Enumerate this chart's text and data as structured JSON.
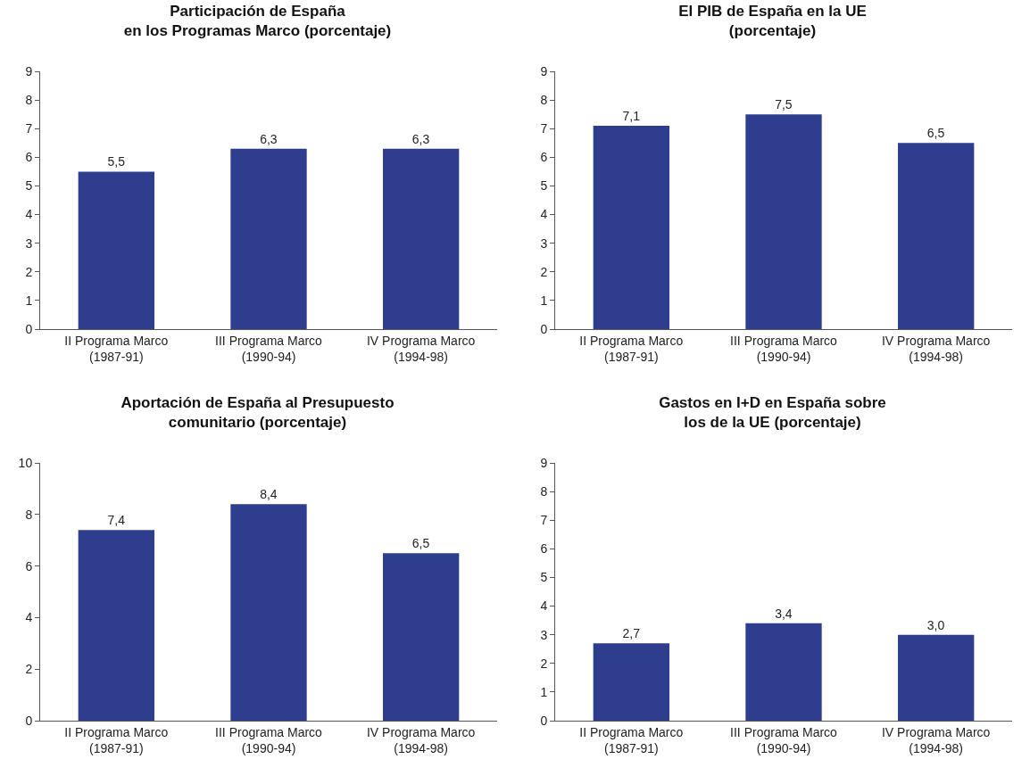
{
  "chart_data": [
    {
      "type": "bar",
      "title": "Participación de España\nen los Programas Marco (porcentaje)",
      "categories": [
        "II Programa Marco\n(1987-91)",
        "III Programa Marco\n(1990-94)",
        "IV Programa Marco\n(1994-98)"
      ],
      "values": [
        5.5,
        6.3,
        6.3
      ],
      "value_labels": [
        "5,5",
        "6,3",
        "6,3"
      ],
      "color": "#2e3d8e",
      "ylim": [
        0,
        9
      ],
      "yticks": [
        0,
        1,
        2,
        3,
        4,
        5,
        6,
        7,
        8,
        9
      ]
    },
    {
      "type": "bar",
      "title": "El PIB de España en la UE\n(porcentaje)",
      "categories": [
        "II Programa Marco\n(1987-91)",
        "III Programa Marco\n(1990-94)",
        "IV Programa Marco\n(1994-98)"
      ],
      "values": [
        7.1,
        7.5,
        6.5
      ],
      "value_labels": [
        "7,1",
        "7,5",
        "6,5"
      ],
      "color": "#2e3d8e",
      "ylim": [
        0,
        9
      ],
      "yticks": [
        0,
        1,
        2,
        3,
        4,
        5,
        6,
        7,
        8,
        9
      ]
    },
    {
      "type": "bar",
      "title": "Aportación de España al Presupuesto\ncomunitario (porcentaje)",
      "categories": [
        "II Programa Marco\n(1987-91)",
        "III Programa Marco\n(1990-94)",
        "IV Programa Marco\n(1994-98)"
      ],
      "values": [
        7.4,
        8.4,
        6.5
      ],
      "value_labels": [
        "7,4",
        "8,4",
        "6,5"
      ],
      "color": "#2e3d8e",
      "ylim": [
        0,
        10
      ],
      "yticks": [
        0,
        2,
        4,
        6,
        8,
        10
      ]
    },
    {
      "type": "bar",
      "title": "Gastos en I+D en España sobre\nlos de la UE (porcentaje)",
      "categories": [
        "II Programa Marco\n(1987-91)",
        "III Programa Marco\n(1990-94)",
        "IV Programa Marco\n(1994-98)"
      ],
      "values": [
        2.7,
        3.4,
        3.0
      ],
      "value_labels": [
        "2,7",
        "3,4",
        "3,0"
      ],
      "color": "#2e3d8e",
      "ylim": [
        0,
        9
      ],
      "yticks": [
        0,
        1,
        2,
        3,
        4,
        5,
        6,
        7,
        8,
        9
      ]
    }
  ]
}
